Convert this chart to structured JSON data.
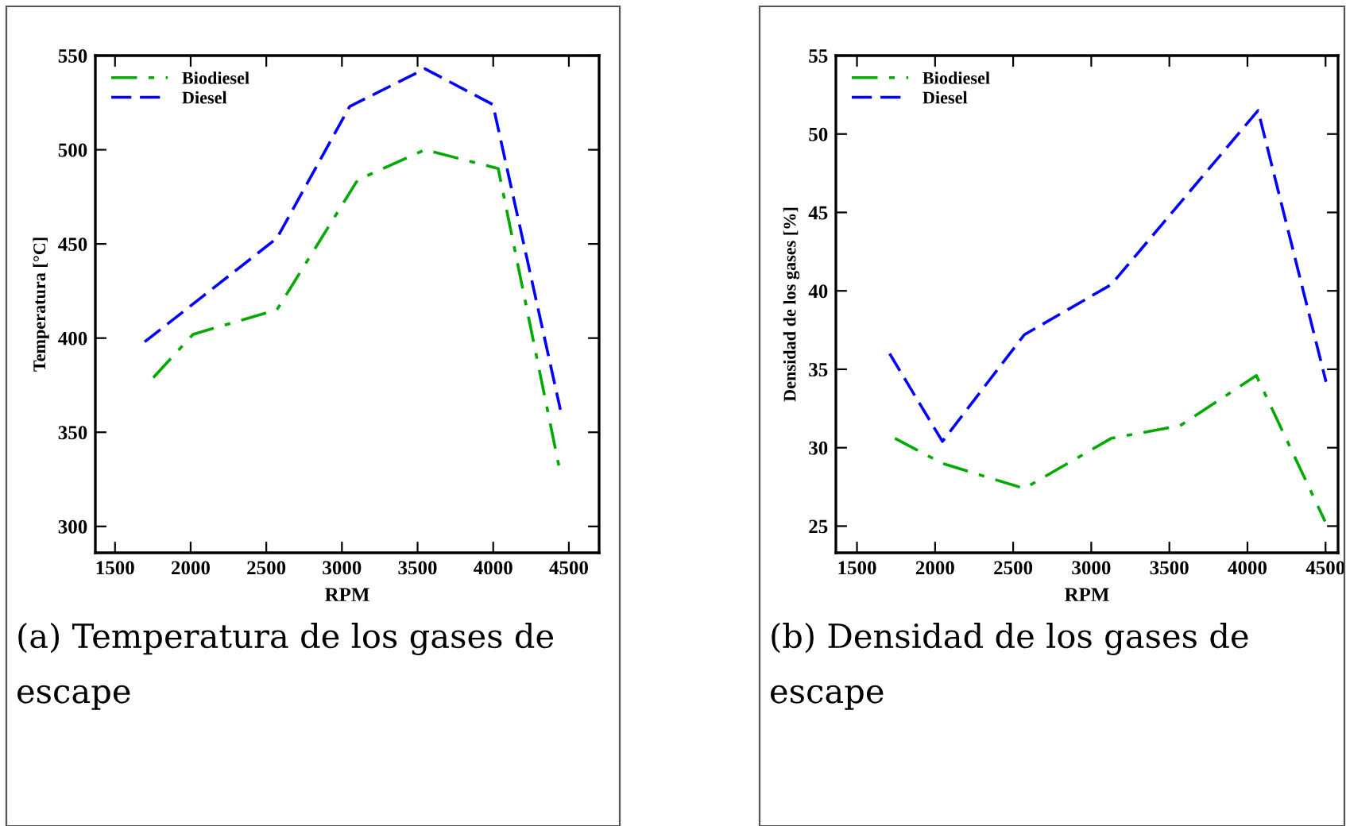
{
  "chart_data": [
    {
      "type": "line",
      "xlabel": "RPM",
      "ylabel": "Temperatura [°C]",
      "xlim": [
        1370,
        4700
      ],
      "xticks": [
        1500,
        2000,
        2500,
        3000,
        3500,
        4000,
        4500
      ],
      "ylim": [
        286,
        550
      ],
      "yticks": [
        300,
        350,
        400,
        450,
        500,
        550
      ],
      "grid": false,
      "legend": "top left",
      "marker": "none",
      "series": [
        {
          "name": "Biodiesel",
          "color": "#00aa00",
          "line_style": "dashdot",
          "x": [
            1753,
            2016,
            2570,
            3104,
            3549,
            4033,
            4437
          ],
          "values": [
            379,
            402,
            415,
            484,
            500,
            490,
            331
          ]
        },
        {
          "name": "Diesel",
          "color": "#0000ff",
          "line_style": "dashed",
          "x": [
            1696,
            2570,
            3051,
            3549,
            3998,
            4444
          ],
          "values": [
            398,
            453,
            523,
            543,
            524,
            362
          ]
        }
      ],
      "annotations": [
        "(a) Temperatura de los gases de escape"
      ]
    },
    {
      "type": "line",
      "xlabel": "RPM",
      "ylabel": "Densidad de los gases [%]",
      "xlim": [
        1365,
        4580
      ],
      "xticks": [
        1500,
        2000,
        2500,
        3000,
        3500,
        4000,
        4500
      ],
      "ylim": [
        23.3,
        55
      ],
      "yticks": [
        25,
        30,
        35,
        40,
        45,
        50,
        55
      ],
      "grid": false,
      "legend": "top left",
      "marker": "none",
      "series": [
        {
          "name": "Biodiesel",
          "color": "#00aa00",
          "line_style": "dashdot",
          "x": [
            1743,
            2047,
            2571,
            3128,
            3568,
            4057,
            4497
          ],
          "values": [
            30.6,
            29.0,
            27.4,
            30.6,
            31.4,
            34.6,
            25.3
          ]
        },
        {
          "name": "Diesel",
          "color": "#0000ff",
          "line_style": "dashed",
          "x": [
            1709,
            2047,
            2571,
            3128,
            4068,
            4503
          ],
          "values": [
            36.0,
            30.4,
            37.2,
            40.4,
            51.5,
            34.2
          ]
        }
      ],
      "annotations": [
        "(b) Densidad de los gases de escape"
      ]
    }
  ]
}
